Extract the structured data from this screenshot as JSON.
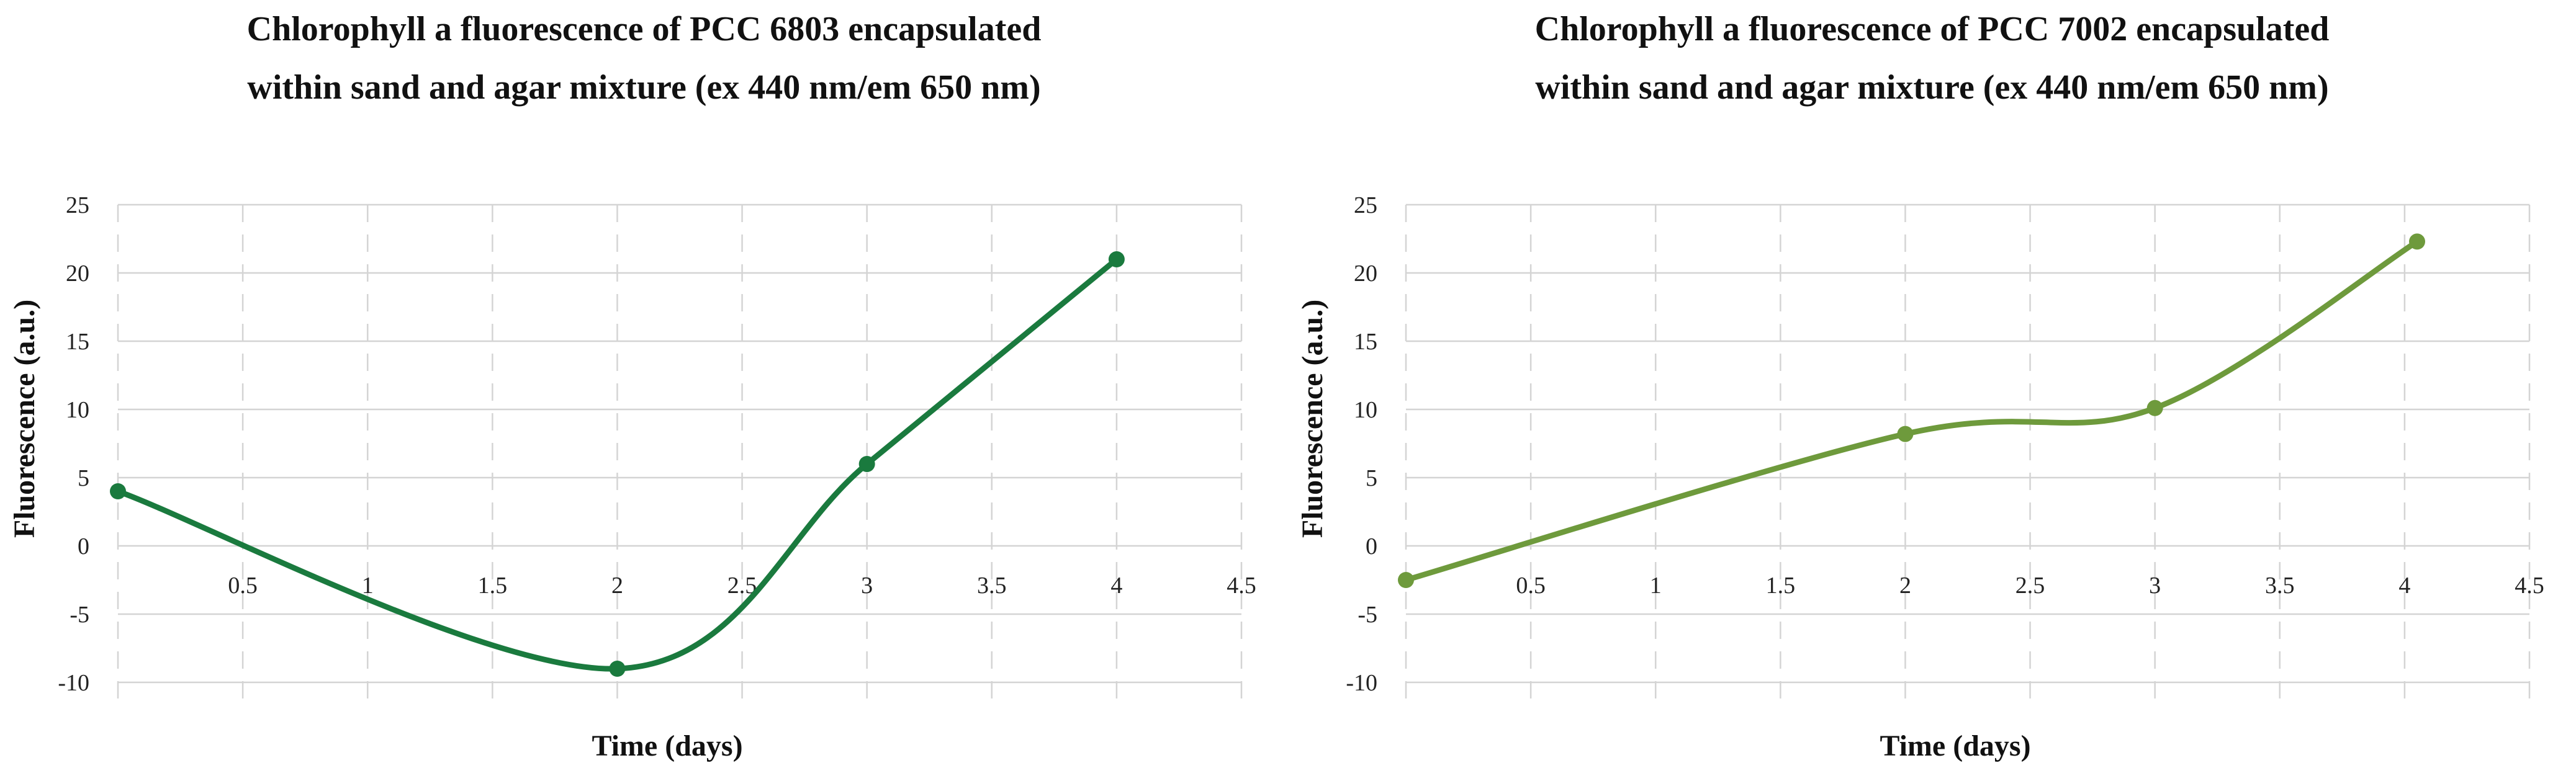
{
  "chart_data": [
    {
      "type": "line",
      "title_lines": [
        "Chlorophyll a fluorescence of PCC 6803 encapsulated",
        "within sand and agar mixture (ex 440 nm/em 650 nm)"
      ],
      "xlabel": "Time (days)",
      "ylabel": "Fluorescence (a.u.)",
      "xlim": [
        0,
        4.5
      ],
      "ylim": [
        -10,
        25
      ],
      "xticks": [
        0.5,
        1,
        1.5,
        2,
        2.5,
        3,
        3.5,
        4,
        4.5
      ],
      "xtick_labels": [
        "0.5",
        "1",
        "1.5",
        "2",
        "2.5",
        "3",
        "3.5",
        "4",
        "4.5"
      ],
      "yticks": [
        -10,
        -5,
        0,
        5,
        10,
        15,
        20,
        25
      ],
      "ytick_labels": [
        "-10",
        "-5",
        "0",
        "5",
        "10",
        "15",
        "20",
        "25"
      ],
      "grid": true,
      "smooth": true,
      "series": [
        {
          "color": "#1a7a3e",
          "x": [
            0,
            2,
            3,
            4
          ],
          "y": [
            4,
            -9,
            6,
            21
          ]
        }
      ]
    },
    {
      "type": "line",
      "title_lines": [
        "Chlorophyll a fluorescence of PCC 7002 encapsulated",
        "within sand and agar mixture (ex 440 nm/em 650 nm)"
      ],
      "xlabel": "Time (days)",
      "ylabel": "Fluorescence (a.u.)",
      "xlim": [
        0,
        4.5
      ],
      "ylim": [
        -10,
        25
      ],
      "xticks": [
        0.5,
        1,
        1.5,
        2,
        2.5,
        3,
        3.5,
        4,
        4.5
      ],
      "xtick_labels": [
        "0.5",
        "1",
        "1.5",
        "2",
        "2.5",
        "3",
        "3.5",
        "4",
        "4.5"
      ],
      "yticks": [
        -10,
        -5,
        0,
        5,
        10,
        15,
        20,
        25
      ],
      "ytick_labels": [
        "-10",
        "-5",
        "0",
        "5",
        "10",
        "15",
        "20",
        "25"
      ],
      "grid": true,
      "smooth": true,
      "series": [
        {
          "color": "#6e9a3c",
          "x": [
            0,
            2,
            3,
            4.05
          ],
          "y": [
            -2.5,
            8.2,
            10.1,
            22.3
          ]
        }
      ]
    }
  ]
}
